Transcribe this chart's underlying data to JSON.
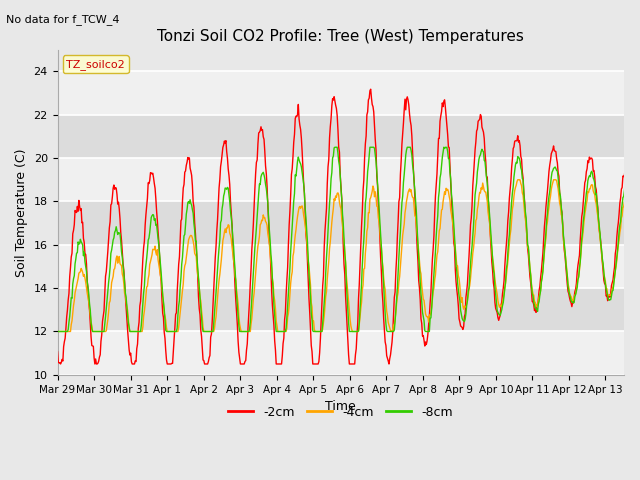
{
  "title": "Tonzi Soil CO2 Profile: Tree (West) Temperatures",
  "subtitle": "No data for f_TCW_4",
  "ylabel": "Soil Temperature (C)",
  "xlabel": "Time",
  "ylim": [
    10,
    25
  ],
  "legend_box_label": "TZ_soilco2",
  "legend_entries": [
    "-2cm",
    "-4cm",
    "-8cm"
  ],
  "legend_colors": [
    "#ff0000",
    "#ffa500",
    "#33cc00"
  ],
  "background_color": "#e8e8e8",
  "plot_bg_color": "#e8e8e8",
  "stripe_light": "#f0f0f0",
  "stripe_dark": "#dcdcdc",
  "xtick_labels": [
    "Mar 29",
    "Mar 30",
    "Mar 31",
    "Apr 1",
    "Apr 2",
    "Apr 3",
    "Apr 4",
    "Apr 5",
    "Apr 6",
    "Apr 7",
    "Apr 8",
    "Apr 9",
    "Apr 10",
    "Apr 11",
    "Apr 12",
    "Apr 13"
  ],
  "xtick_days": [
    0,
    1,
    2,
    3,
    4,
    5,
    6,
    7,
    8,
    9,
    10,
    11,
    12,
    13,
    14,
    15
  ],
  "ytick_values": [
    10,
    12,
    14,
    16,
    18,
    20,
    22,
    24
  ],
  "figsize": [
    6.4,
    4.8
  ],
  "dpi": 100
}
